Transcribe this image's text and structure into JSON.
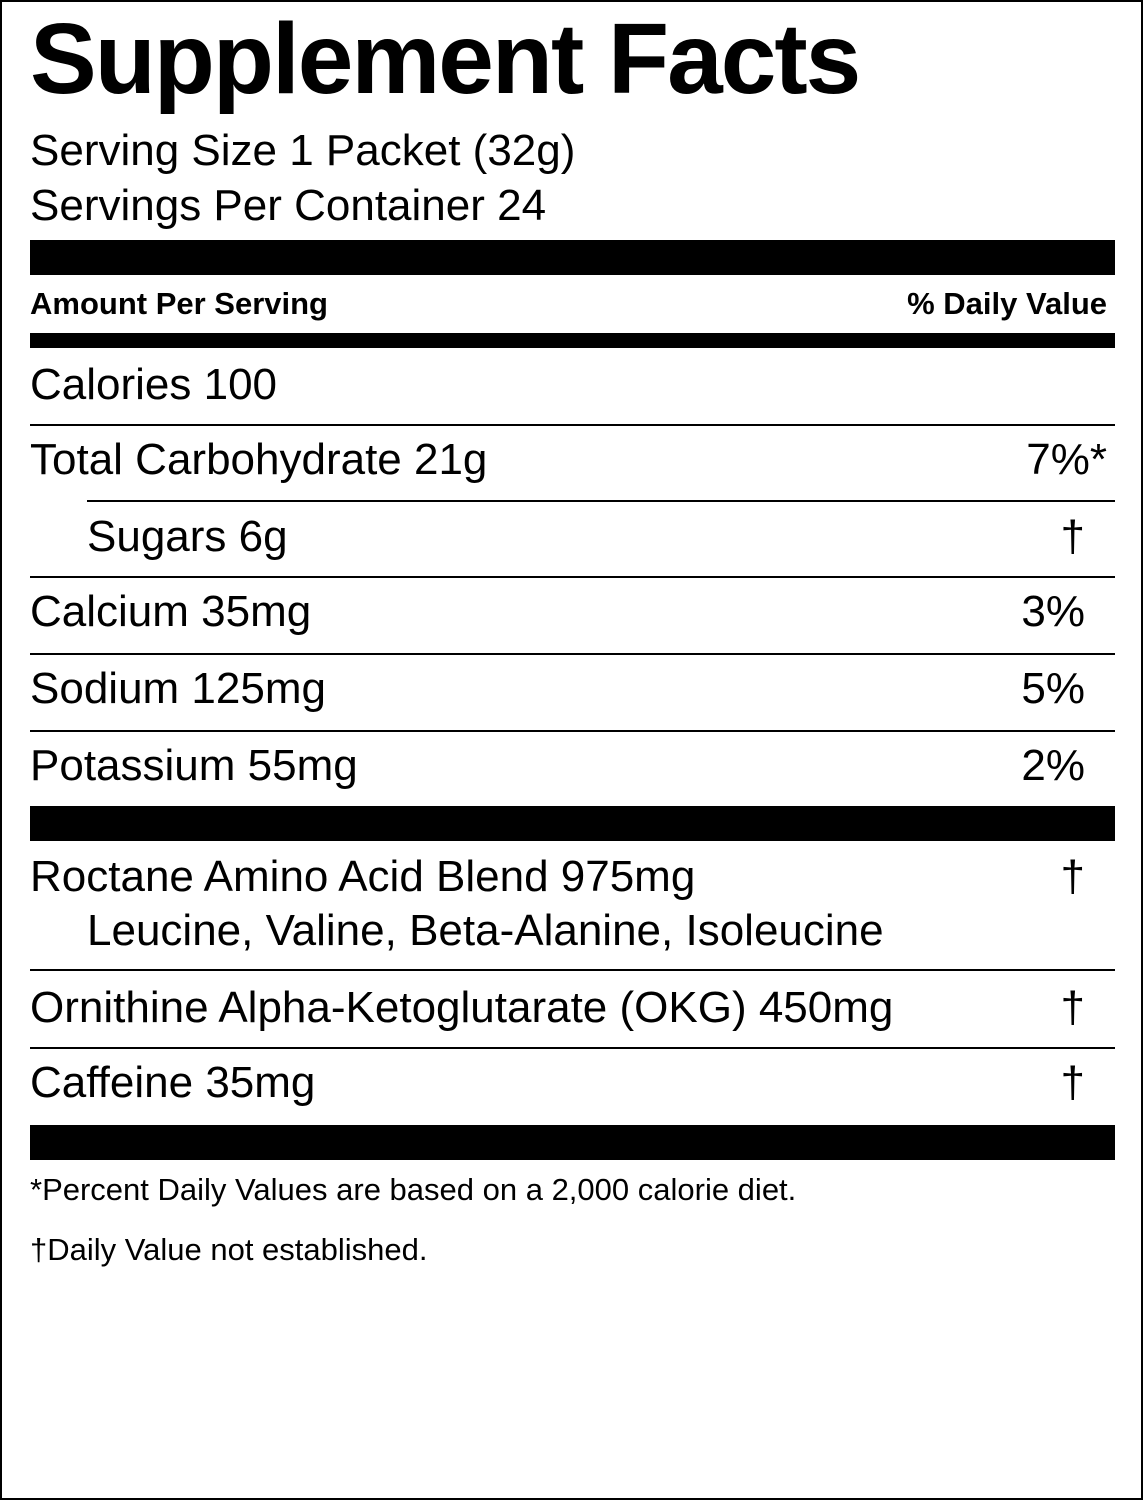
{
  "title": "Supplement Facts",
  "serving_size": "Serving Size 1 Packet (32g)",
  "servings_per_container": "Servings Per Container 24",
  "header": {
    "amount": "Amount Per Serving",
    "daily_value": "% Daily Value"
  },
  "rows": [
    {
      "label": "Calories  100",
      "dv": ""
    },
    {
      "label": "Total Carbohydrate  21g",
      "dv": "7%*"
    },
    {
      "label": "Sugars  6g",
      "dv": "†"
    },
    {
      "label": "Calcium  35mg",
      "dv": "3%"
    },
    {
      "label": "Sodium  125mg",
      "dv": "5%"
    },
    {
      "label": "Potassium  55mg",
      "dv": "2%"
    }
  ],
  "blend": {
    "label": "Roctane Amino Acid Blend  975mg",
    "dv": "†",
    "ingredients": "Leucine, Valine, Beta-Alanine, Isoleucine"
  },
  "other": [
    {
      "label": "Ornithine Alpha-Ketoglutarate (OKG)  450mg",
      "dv": "†"
    },
    {
      "label": "Caffeine  35mg",
      "dv": "†"
    }
  ],
  "footnotes": [
    "*Percent Daily Values are based on a 2,000 calorie diet.",
    "†Daily Value not established."
  ]
}
